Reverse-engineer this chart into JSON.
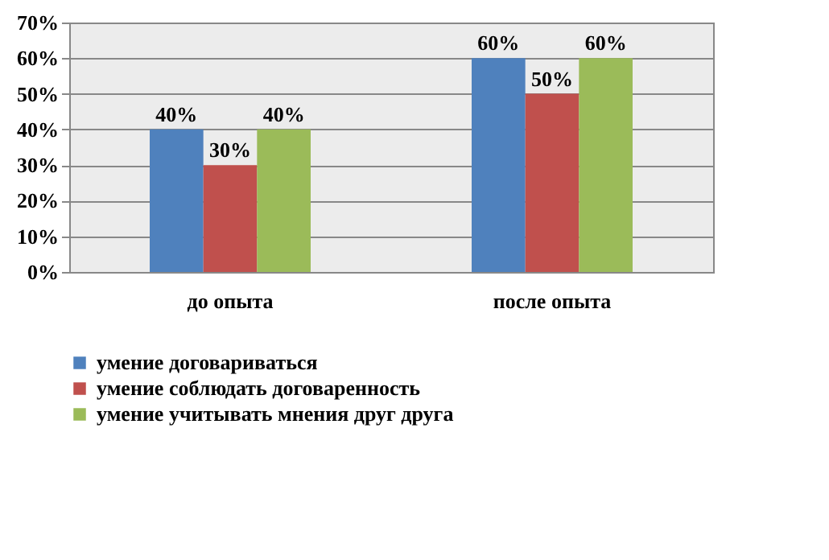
{
  "chart_data": {
    "type": "bar",
    "categories": [
      "до опыта",
      "после опыта"
    ],
    "series": [
      {
        "name": "умение договариваться",
        "color": "#4f81bd",
        "values": [
          40,
          60
        ],
        "value_labels": [
          "40%",
          "60%"
        ]
      },
      {
        "name": "умение соблюдать договаренность",
        "color": "#c0504d",
        "values": [
          30,
          50
        ],
        "value_labels": [
          "30%",
          "50%"
        ]
      },
      {
        "name": "умение учитывать мнения друг друга",
        "color": "#9bbb59",
        "values": [
          40,
          60
        ],
        "value_labels": [
          "40%",
          "60%"
        ]
      }
    ],
    "ylim": [
      0,
      70
    ],
    "yticks": [
      {
        "value": 0,
        "label": "0%"
      },
      {
        "value": 10,
        "label": "10%"
      },
      {
        "value": 20,
        "label": "20%"
      },
      {
        "value": 30,
        "label": "30%"
      },
      {
        "value": 40,
        "label": "40%"
      },
      {
        "value": 50,
        "label": "50%"
      },
      {
        "value": 60,
        "label": "60%"
      },
      {
        "value": 70,
        "label": "70%"
      }
    ],
    "grid": "y",
    "legend": "bottom"
  }
}
